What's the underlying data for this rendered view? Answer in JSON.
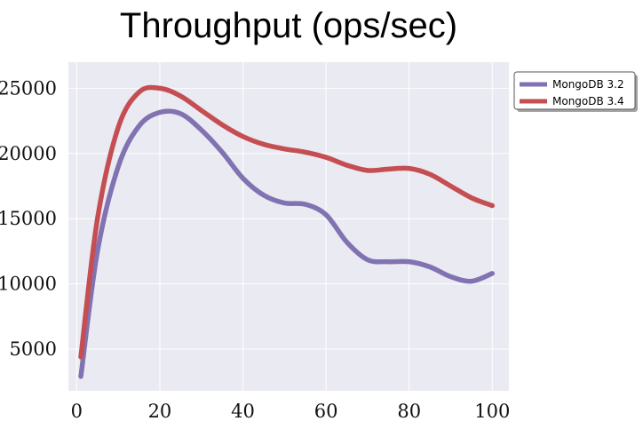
{
  "chart_data": {
    "type": "line",
    "title": "Throughput (ops/sec)",
    "xlabel": "",
    "ylabel": "",
    "xlim": [
      -2,
      104
    ],
    "ylim": [
      1800,
      27000
    ],
    "x_ticks": [
      0,
      20,
      40,
      60,
      80,
      100
    ],
    "y_ticks": [
      5000,
      10000,
      15000,
      20000,
      25000
    ],
    "grid": true,
    "legend_position": "outside-top-right",
    "background": "#eaeaf2",
    "series": [
      {
        "name": "MongoDB 3.2",
        "color": "#8172b2",
        "x": [
          1,
          5,
          10,
          15,
          20,
          25,
          30,
          35,
          40,
          45,
          50,
          55,
          60,
          65,
          70,
          75,
          80,
          85,
          90,
          95,
          100
        ],
        "y": [
          2900,
          12500,
          19000,
          22100,
          23150,
          23050,
          21800,
          20100,
          18100,
          16800,
          16200,
          16100,
          15300,
          13200,
          11850,
          11700,
          11700,
          11300,
          10550,
          10200,
          10800
        ]
      },
      {
        "name": "MongoDB 3.4",
        "color": "#c44e52",
        "x": [
          1,
          5,
          10,
          15,
          20,
          25,
          30,
          35,
          40,
          45,
          50,
          55,
          60,
          65,
          70,
          75,
          80,
          85,
          90,
          95,
          100
        ],
        "y": [
          4400,
          15000,
          22000,
          24700,
          25000,
          24400,
          23300,
          22200,
          21300,
          20700,
          20350,
          20100,
          19700,
          19100,
          18700,
          18800,
          18850,
          18400,
          17500,
          16600,
          16000
        ]
      }
    ]
  }
}
